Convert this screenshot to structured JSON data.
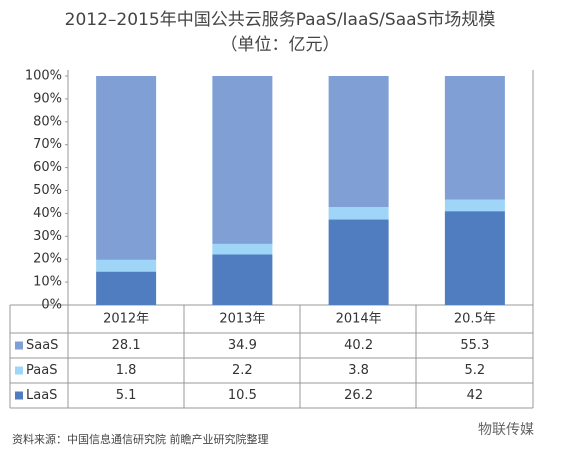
{
  "chart_data": {
    "type": "stacked_percent_bar",
    "title": "2012–2015年中国公共云服务PaaS/IaaS/SaaS市场规模",
    "subtitle": "（单位：亿元）",
    "categories": [
      "2012年",
      "2013年",
      "2014年",
      "20.5年"
    ],
    "series": [
      {
        "name": "LaaS",
        "color": "#4f7dc0",
        "values": [
          5.1,
          10.5,
          26.2,
          42
        ]
      },
      {
        "name": "PaaS",
        "color": "#9fd5f7",
        "values": [
          1.8,
          2.2,
          3.8,
          5.2
        ]
      },
      {
        "name": "SaaS",
        "color": "#7f9fd5",
        "values": [
          28.1,
          34.9,
          40.2,
          55.3
        ]
      }
    ],
    "ylim": [
      0,
      100
    ],
    "yticks": [
      {
        "value": 0,
        "label": "0%"
      },
      {
        "value": 10,
        "label": "10%"
      },
      {
        "value": 20,
        "label": "20%"
      },
      {
        "value": 30,
        "label": "30%"
      },
      {
        "value": 40,
        "label": "40%"
      },
      {
        "value": 50,
        "label": "50%"
      },
      {
        "value": 60,
        "label": "60%"
      },
      {
        "value": 70,
        "label": "70%"
      },
      {
        "value": 80,
        "label": "80%"
      },
      {
        "value": 90,
        "label": "90%"
      },
      {
        "value": 100,
        "label": "100%"
      }
    ],
    "grid": false,
    "source": "资料来源：中国信息通信研究院 前瞻产业研究院整理",
    "watermark": "物联传媒"
  }
}
